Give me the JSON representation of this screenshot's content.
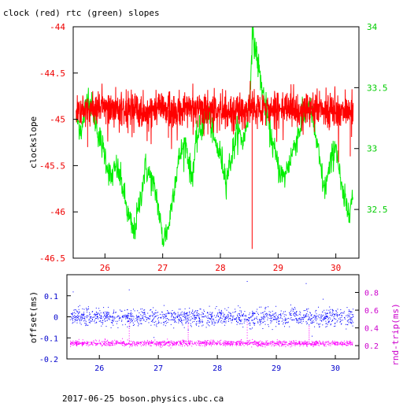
{
  "title": "clock (red) rtc (green) slopes",
  "footer": "2017-06-25  boson.physics.ubc.ca",
  "colors": {
    "clock": "#ff0000",
    "rtc": "#00ee00",
    "offset": "#0000ff",
    "rndtrip": "#ff00ff",
    "left_axis_top": "#ee0000",
    "right_axis_top": "#00cc00",
    "left_axis_bottom": "#0000cc",
    "right_axis_bottom": "#cc00cc",
    "axis_line": "#000000"
  },
  "chart_data": [
    {
      "type": "line",
      "title": "clock (red) rtc (green) slopes",
      "ylabel": "clockslope",
      "xlim": [
        25.45,
        30.4
      ],
      "x_ticks": [
        26,
        27,
        28,
        29,
        30
      ],
      "y_left": {
        "lim": [
          -46.5,
          -44
        ],
        "ticks": [
          -44,
          -44.5,
          -45,
          -45.5,
          -46,
          -46.5
        ],
        "tick_labels": [
          "-44",
          "-44.5",
          "-45",
          "-45.5",
          "-46",
          "-46.5"
        ]
      },
      "y_right": {
        "lim": [
          32.1,
          34
        ],
        "ticks": [
          34,
          33.5,
          33,
          32.5
        ],
        "tick_labels": [
          "34",
          "33.5",
          "33",
          "32.5"
        ]
      },
      "series": [
        {
          "color_key": "clock",
          "axis": "left",
          "x": [
            25.5,
            25.6,
            25.7,
            25.8,
            25.9,
            26.0,
            26.2,
            26.4,
            26.6,
            26.8,
            27.0,
            27.2,
            27.4,
            27.6,
            27.8,
            28.0,
            28.2,
            28.4,
            28.5,
            28.55,
            28.6,
            28.8,
            29.0,
            29.2,
            29.4,
            29.6,
            29.8,
            30.0,
            30.2,
            30.3
          ],
          "y": [
            -44.9,
            -44.92,
            -44.88,
            -44.9,
            -44.91,
            -44.89,
            -44.9,
            -44.88,
            -44.92,
            -44.9,
            -44.89,
            -44.9,
            -44.91,
            -44.89,
            -44.9,
            -44.92,
            -44.9,
            -44.91,
            -44.9,
            -44.88,
            -44.92,
            -44.9,
            -44.89,
            -44.9,
            -44.91,
            -44.9,
            -44.88,
            -44.9,
            -44.91,
            -44.9
          ],
          "noise": 0.09,
          "spikes_down": [
            [
              25.7,
              -45.3
            ],
            [
              26.4,
              -45.15
            ],
            [
              27.1,
              -45.2
            ],
            [
              28.55,
              -46.4
            ],
            [
              30.25,
              -45.4
            ]
          ]
        },
        {
          "color_key": "rtc",
          "axis": "right",
          "x": [
            25.5,
            25.6,
            25.7,
            25.8,
            25.9,
            26.0,
            26.1,
            26.2,
            26.3,
            26.4,
            26.5,
            26.6,
            26.7,
            26.8,
            26.9,
            27.0,
            27.1,
            27.2,
            27.3,
            27.4,
            27.5,
            27.6,
            27.7,
            27.8,
            27.9,
            28.0,
            28.1,
            28.2,
            28.3,
            28.4,
            28.5,
            28.55,
            28.6,
            28.7,
            28.8,
            28.9,
            29.0,
            29.1,
            29.2,
            29.3,
            29.4,
            29.5,
            29.6,
            29.7,
            29.8,
            29.9,
            30.0,
            30.1,
            30.2,
            30.3
          ],
          "y": [
            33.25,
            33.15,
            33.45,
            33.3,
            33.1,
            32.95,
            32.75,
            32.85,
            32.7,
            32.45,
            32.3,
            32.55,
            32.85,
            32.75,
            32.6,
            32.25,
            32.35,
            32.7,
            32.95,
            33.05,
            32.75,
            33.1,
            33.2,
            33.3,
            33.05,
            32.95,
            32.75,
            32.95,
            33.15,
            33.05,
            33.35,
            33.9,
            33.85,
            33.55,
            33.3,
            33.05,
            32.85,
            32.75,
            32.9,
            33.05,
            33.2,
            33.35,
            33.25,
            32.95,
            32.65,
            32.85,
            33.05,
            32.65,
            32.5,
            32.6
          ],
          "noise": 0.06
        }
      ]
    },
    {
      "type": "scatter",
      "xlim": [
        25.45,
        30.4
      ],
      "x_ticks": [
        26,
        27,
        28,
        29,
        30
      ],
      "ylabel_left": "offset(ms)",
      "ylabel_right": "rnd-trip(ms)",
      "y_left": {
        "lim": [
          -0.2,
          0.2
        ],
        "ticks": [
          0.1,
          0,
          -0.1,
          -0.2
        ],
        "tick_labels": [
          "0.1",
          "0",
          "-0.1",
          "-0.2"
        ]
      },
      "y_right": {
        "lim": [
          0.05,
          1.0
        ],
        "ticks": [
          0.8,
          0.6,
          0.4,
          0.2
        ],
        "tick_labels": [
          "0.8",
          "0.6",
          "0.4",
          "0.2"
        ]
      },
      "series": [
        {
          "color_key": "offset",
          "axis": "left",
          "xrange": [
            25.5,
            30.3
          ],
          "center": 0.0,
          "spread": 0.02,
          "count": 1400,
          "outliers": [
            [
              25.55,
              0.12
            ],
            [
              26.5,
              0.13
            ],
            [
              28.5,
              0.17
            ],
            [
              29.5,
              0.16
            ],
            [
              27.5,
              -0.06
            ],
            [
              29.6,
              -0.09
            ]
          ]
        },
        {
          "color_key": "rndtrip",
          "axis": "right",
          "xrange": [
            25.5,
            30.3
          ],
          "center": 0.23,
          "spread": 0.015,
          "count": 1400,
          "spikes": [
            [
              26.5,
              0.48
            ],
            [
              27.5,
              0.45
            ],
            [
              28.5,
              0.5
            ],
            [
              29.55,
              0.42
            ]
          ]
        }
      ]
    }
  ]
}
